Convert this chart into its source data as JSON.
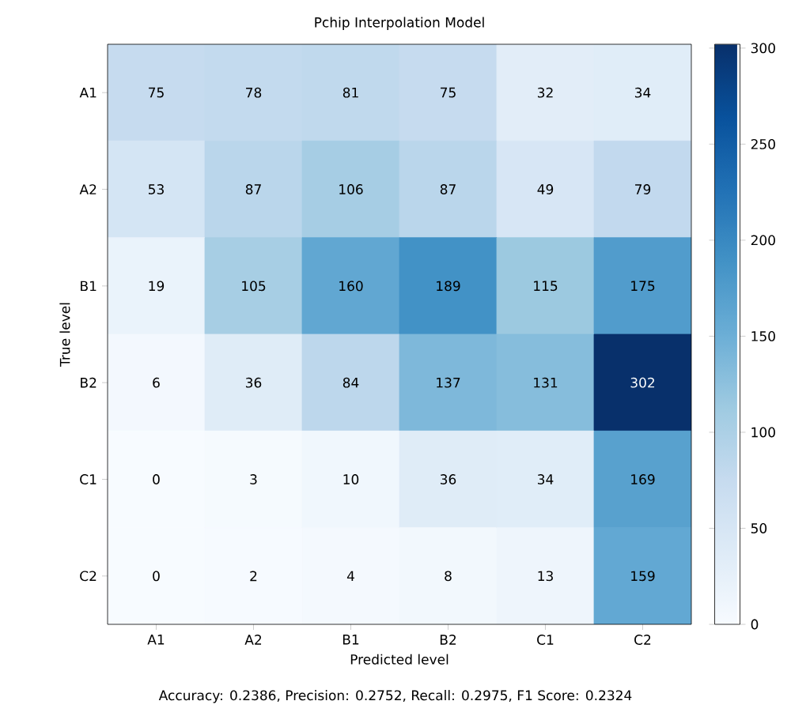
{
  "chart_data": {
    "type": "heatmap",
    "title": "Pchip Interpolation Model",
    "xlabel": "Predicted level",
    "ylabel": "True level",
    "categories": [
      "A1",
      "A2",
      "B1",
      "B2",
      "C1",
      "C2"
    ],
    "y_categories": [
      "A1",
      "A2",
      "B1",
      "B2",
      "C1",
      "C2"
    ],
    "cells": [
      [
        75,
        78,
        81,
        75,
        32,
        34
      ],
      [
        53,
        87,
        106,
        87,
        49,
        79
      ],
      [
        19,
        105,
        160,
        189,
        115,
        175
      ],
      [
        6,
        36,
        84,
        137,
        131,
        302
      ],
      [
        0,
        3,
        10,
        36,
        34,
        169
      ],
      [
        0,
        2,
        4,
        8,
        13,
        159
      ]
    ],
    "clim": [
      0,
      302
    ],
    "cticks": [
      0,
      50,
      100,
      150,
      200,
      250,
      300
    ],
    "data_labels": true,
    "annotations": [
      "Accuracy: 0.2386, Precision: 0.2752, Recall: 0.2975, F1 Score: 0.2324"
    ]
  }
}
